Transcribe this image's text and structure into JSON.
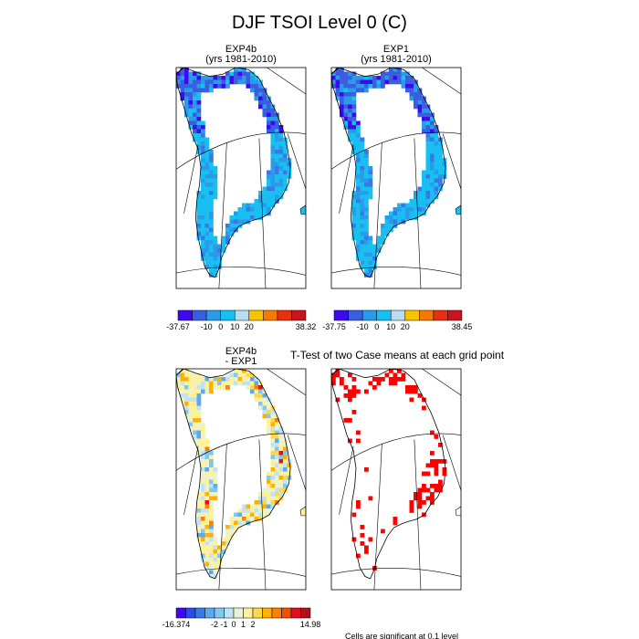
{
  "title": "DJF TSOI Level 0 (C)",
  "panels": [
    {
      "id": "exp4b",
      "title_line1": "EXP4b",
      "title_line2": "(yrs 1981-2010)"
    },
    {
      "id": "exp1",
      "title_line1": "EXP1",
      "title_line2": "(yrs 1981-2010)"
    },
    {
      "id": "diff",
      "title_line1": "EXP4b",
      "title_line2": "- EXP1"
    },
    {
      "id": "ttest",
      "title_line1": "T-Test of two Case means at each grid point",
      "title_line2": ""
    }
  ],
  "footnote": "Cells are significant at 0.1 level",
  "colorbars": [
    {
      "id": "exp4b",
      "colors": [
        "#3d0af0",
        "#3a5ee0",
        "#2a9be8",
        "#17c0f0",
        "#b8dcf0",
        "#f6c400",
        "#f47a00",
        "#e83010",
        "#c8141e"
      ],
      "labels": [
        "-37.67",
        "-10",
        "0",
        "10",
        "20",
        "38.32"
      ]
    },
    {
      "id": "exp1",
      "colors": [
        "#3d0af0",
        "#3a5ee0",
        "#2a9be8",
        "#17c0f0",
        "#b8dcf0",
        "#f6c400",
        "#f47a00",
        "#e83010",
        "#c8141e"
      ],
      "labels": [
        "-37.75",
        "-10",
        "0",
        "10",
        "20",
        "38.45"
      ]
    },
    {
      "id": "diff",
      "colors": [
        "#3d0af0",
        "#2a4fe0",
        "#3a78e8",
        "#5ea8f0",
        "#7fc8f0",
        "#bfe3f5",
        "#e9f3cf",
        "#fff09a",
        "#ffd84a",
        "#ffb000",
        "#ff8000",
        "#f05000",
        "#e01020",
        "#b0101a"
      ],
      "labels": [
        "-16.374",
        "-2",
        "-1",
        "0",
        "1",
        "2",
        "14.98"
      ]
    }
  ],
  "chart_data": {
    "type": "heatmap",
    "title": "DJF TSOI Level 0 (C)",
    "region": "Greenland",
    "variable": "TSOI Level 0",
    "units": "C",
    "season": "DJF",
    "panels": [
      {
        "name": "EXP4b (yrs 1981-2010)",
        "min": -37.67,
        "max": 38.32,
        "colorbar_ticks": [
          -10,
          0,
          10,
          20
        ]
      },
      {
        "name": "EXP1 (yrs 1981-2010)",
        "min": -37.75,
        "max": 38.45,
        "colorbar_ticks": [
          -10,
          0,
          10,
          20
        ]
      },
      {
        "name": "EXP4b - EXP1",
        "min": -16.374,
        "max": 14.98,
        "colorbar_ticks": [
          -2,
          -1,
          0,
          1,
          2
        ]
      },
      {
        "name": "T-Test of two Case means at each grid point",
        "significance_level": 0.1
      }
    ]
  }
}
